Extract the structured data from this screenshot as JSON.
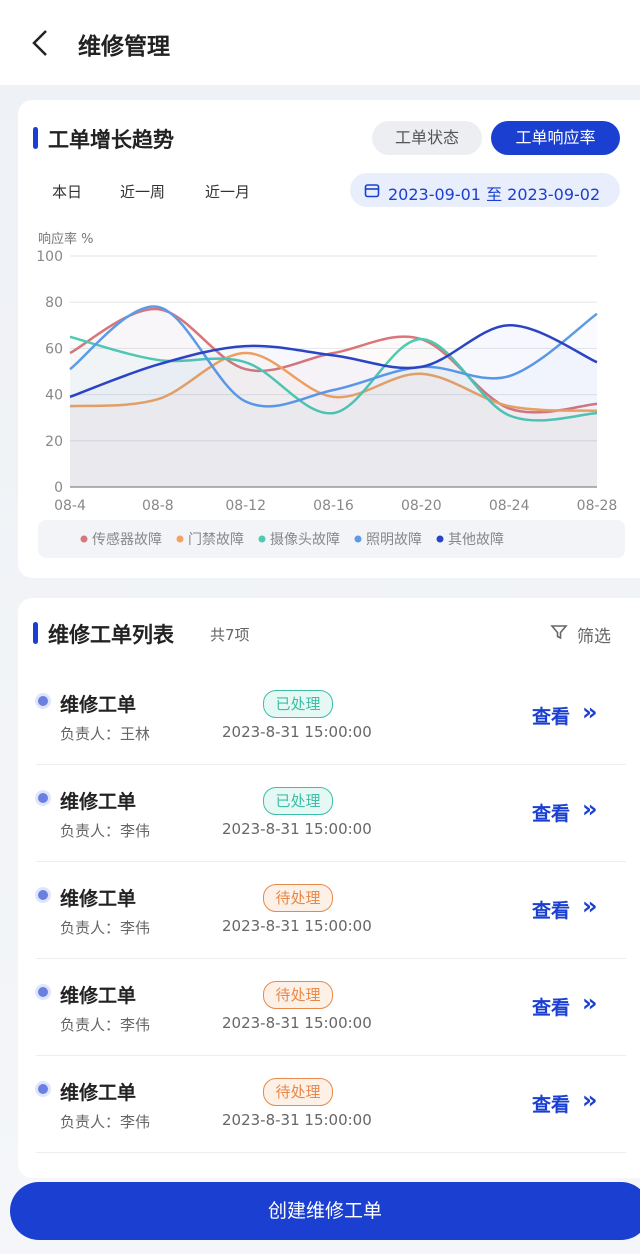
{
  "header": {
    "title": "维修管理"
  },
  "trend": {
    "title": "工单增长趋势",
    "tabs": [
      "工单状态",
      "工单响应率"
    ],
    "ranges": [
      "本日",
      "近一周",
      "近一月"
    ],
    "date_range": "2023-09-01 至 2023-09-02",
    "chart_data": {
      "type": "line",
      "y_label": "响应率 %",
      "categories": [
        "08-4",
        "08-8",
        "08-12",
        "08-16",
        "08-20",
        "08-24",
        "08-28"
      ],
      "ylim": [
        0,
        100
      ],
      "yticks": [
        0,
        20,
        40,
        60,
        80,
        100
      ],
      "grid": true,
      "series": [
        {
          "name": "传感器故障",
          "color": "#d9767a",
          "values": [
            58,
            77,
            51,
            58,
            64,
            34,
            36
          ]
        },
        {
          "name": "门禁故障",
          "color": "#f5a35c",
          "values": [
            35,
            38,
            58,
            39,
            49,
            35,
            33
          ]
        },
        {
          "name": "摄像头故障",
          "color": "#4fc9b0",
          "values": [
            65,
            55,
            54,
            32,
            64,
            31,
            32
          ]
        },
        {
          "name": "照明故障",
          "color": "#5b9be8",
          "values": [
            51,
            78,
            37,
            42,
            52,
            48,
            75
          ]
        },
        {
          "name": "其他故障",
          "color": "#2b44c4",
          "values": [
            39,
            53,
            61,
            57,
            52,
            70,
            54
          ]
        }
      ]
    }
  },
  "list": {
    "title": "维修工单列表",
    "count": "共7项",
    "filter": "筛选",
    "items": [
      {
        "name": "维修工单",
        "owner": "负责人：王林",
        "status": "已处理",
        "time": "2023-8-31 15:00:00",
        "action": "查看"
      },
      {
        "name": "维修工单",
        "owner": "负责人：李伟",
        "status": "已处理",
        "time": "2023-8-31 15:00:00",
        "action": "查看"
      },
      {
        "name": "维修工单",
        "owner": "负责人：李伟",
        "status": "待处理",
        "time": "2023-8-31 15:00:00",
        "action": "查看"
      },
      {
        "name": "维修工单",
        "owner": "负责人：李伟",
        "status": "待处理",
        "time": "2023-8-31 15:00:00",
        "action": "查看"
      },
      {
        "name": "维修工单",
        "owner": "负责人：李伟",
        "status": "待处理",
        "time": "2023-8-31 15:00:00",
        "action": "查看"
      }
    ]
  },
  "button": "创建维修工单"
}
